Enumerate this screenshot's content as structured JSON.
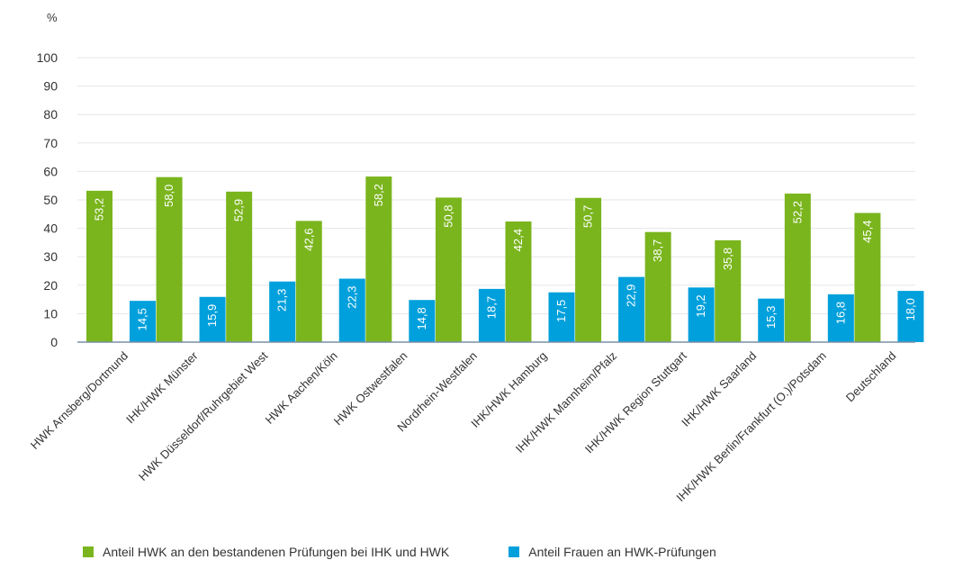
{
  "chart_data": {
    "type": "bar",
    "unit": "%",
    "ylim": [
      0,
      100
    ],
    "yticks": [
      0,
      10,
      20,
      30,
      40,
      50,
      60,
      70,
      80,
      90,
      100
    ],
    "grid": true,
    "legend_position": "bottom",
    "categories": [
      "HWK Arnsberg/Dortmund",
      "IHK/HWK Münster",
      "HWK Düsseldorf/Ruhrgebiet West",
      "HWK Aachen/Köln",
      "HWK Ostwestfalen",
      "Nordrhein-Westfalen",
      "IHK/HWK Hamburg",
      "IHK/HWK Mannheim/Pfalz",
      "IHK/HWK Region Stuttgart",
      "IHK/HWK Saarland",
      "IHK/HWK Berlin/Frankfurt (O.)/Potsdam",
      "Deutschland"
    ],
    "series": [
      {
        "name": "Anteil HWK an den bestandenen Prüfungen bei IHK und HWK",
        "color": "#7ab51d",
        "values": [
          53.2,
          58.0,
          52.9,
          42.6,
          58.2,
          50.8,
          42.4,
          50.7,
          38.7,
          35.8,
          52.2,
          45.4
        ],
        "labels": [
          "53,2",
          "58,0",
          "52,9",
          "42,6",
          "58,2",
          "50,8",
          "42,4",
          "50,7",
          "38,7",
          "35,8",
          "52,2",
          "45,4"
        ]
      },
      {
        "name": "Anteil Frauen an HWK-Prüfungen",
        "color": "#00a0dc",
        "values": [
          14.5,
          15.9,
          21.3,
          22.3,
          14.8,
          18.7,
          17.5,
          22.9,
          19.2,
          15.3,
          16.8,
          18.0
        ],
        "labels": [
          "14,5",
          "15,9",
          "21,3",
          "22,3",
          "14,8",
          "18,7",
          "17,5",
          "22,9",
          "19,2",
          "15,3",
          "16,8",
          "18,0"
        ]
      }
    ]
  }
}
